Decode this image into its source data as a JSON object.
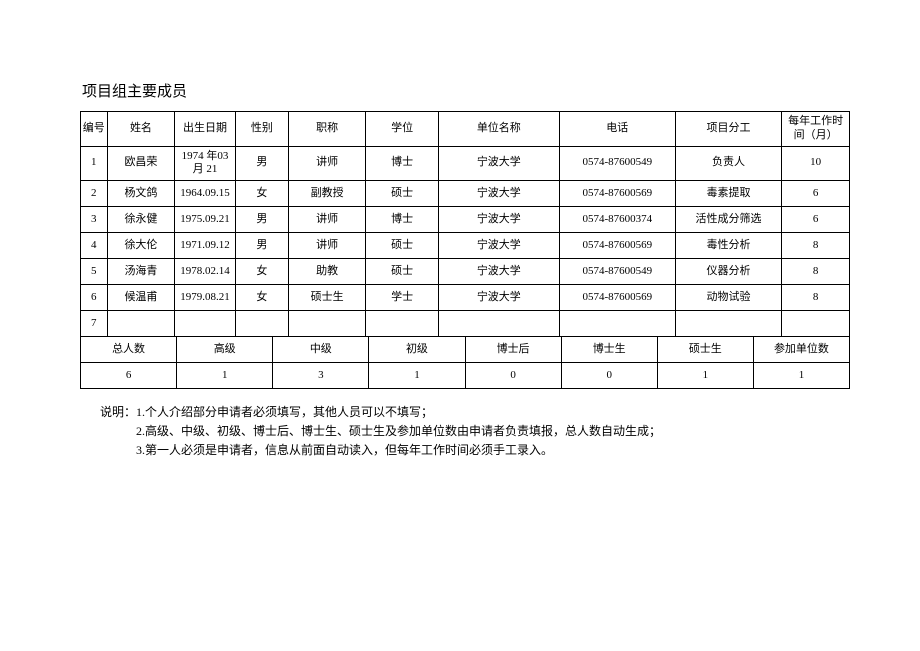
{
  "title": "项目组主要成员",
  "members_table": {
    "columns": [
      "编号",
      "姓名",
      "出生日期",
      "性别",
      "职称",
      "学位",
      "单位名称",
      "电话",
      "项目分工",
      "每年工作时间（月）"
    ],
    "rows": [
      [
        "1",
        "欧昌荣",
        "1974 年03 月 21",
        "男",
        "讲师",
        "博士",
        "宁波大学",
        "0574-87600549",
        "负责人",
        "10"
      ],
      [
        "2",
        "杨文鸽",
        "1964.09.15",
        "女",
        "副教授",
        "硕士",
        "宁波大学",
        "0574-87600569",
        "毒素提取",
        "6"
      ],
      [
        "3",
        "徐永健",
        "1975.09.21",
        "男",
        "讲师",
        "博士",
        "宁波大学",
        "0574-87600374",
        "活性成分筛选",
        "6"
      ],
      [
        "4",
        "徐大伦",
        "1971.09.12",
        "男",
        "讲师",
        "硕士",
        "宁波大学",
        "0574-87600569",
        "毒性分析",
        "8"
      ],
      [
        "5",
        "汤海青",
        "1978.02.14",
        "女",
        "助教",
        "硕士",
        "宁波大学",
        "0574-87600549",
        "仪器分析",
        "8"
      ],
      [
        "6",
        "候温甫",
        "1979.08.21",
        "女",
        "硕士生",
        "学士",
        "宁波大学",
        "0574-87600569",
        "动物试验",
        "8"
      ],
      [
        "7",
        "",
        "",
        "",
        "",
        "",
        "",
        "",
        "",
        ""
      ]
    ]
  },
  "summary_table": {
    "headers": [
      "总人数",
      "高级",
      "中级",
      "初级",
      "博士后",
      "博士生",
      "硕士生",
      "参加单位数"
    ],
    "values": [
      "6",
      "1",
      "3",
      "1",
      "0",
      "0",
      "1",
      "1"
    ]
  },
  "notes": {
    "lead": "说明：",
    "items": [
      "1.个人介绍部分申请者必须填写，其他人员可以不填写；",
      "2.高级、中级、初级、博士后、博士生、硕士生及参加单位数由申请者负责填报，总人数自动生成；",
      "3.第一人必须是申请者，信息从前面自动读入，但每年工作时间必须手工录入。"
    ]
  }
}
